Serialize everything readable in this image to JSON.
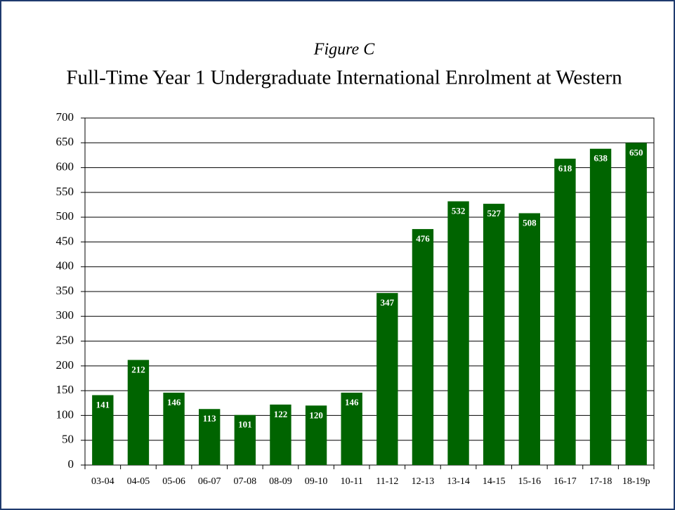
{
  "chart_data": {
    "type": "bar",
    "subtitle": "Figure C",
    "title": "Full-Time Year 1 Undergraduate International Enrolment at Western",
    "categories": [
      "03-04",
      "04-05",
      "05-06",
      "06-07",
      "07-08",
      "08-09",
      "09-10",
      "10-11",
      "11-12",
      "12-13",
      "13-14",
      "14-15",
      "15-16",
      "16-17",
      "17-18",
      "18-19p"
    ],
    "values": [
      141,
      212,
      146,
      113,
      101,
      122,
      120,
      146,
      347,
      476,
      532,
      527,
      508,
      618,
      638,
      650
    ],
    "color": "#006400",
    "ylim": [
      0,
      700
    ],
    "yticks": [
      0,
      50,
      100,
      150,
      200,
      250,
      300,
      350,
      400,
      450,
      500,
      550,
      600,
      650,
      700
    ],
    "grid": true
  }
}
